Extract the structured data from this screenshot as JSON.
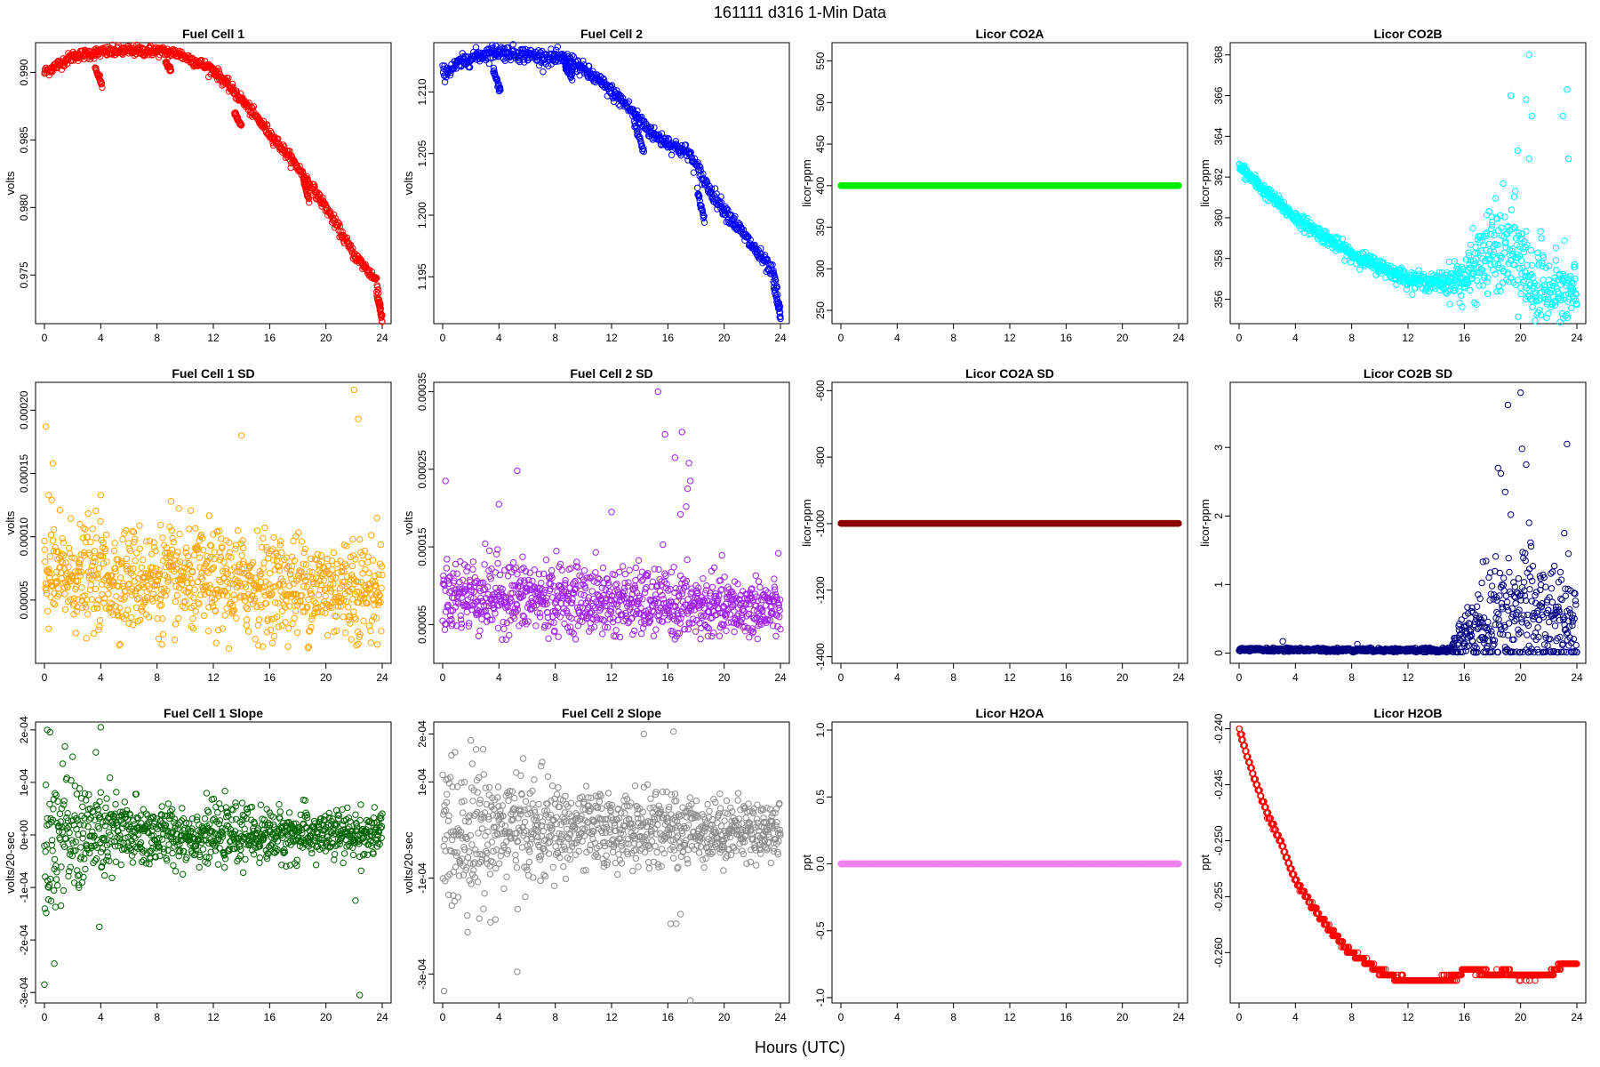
{
  "page": {
    "title": "161111    d316    1-Min Data",
    "xlabel": "Hours (UTC)"
  },
  "chart_data": [
    {
      "type": "scatter",
      "title": "Fuel Cell 1",
      "ylabel": "volts",
      "color": "#ff0000",
      "xlim": [
        0,
        24
      ],
      "ylim": [
        0.9714,
        0.9922
      ],
      "xticks": [
        0,
        4,
        8,
        12,
        16,
        20,
        24
      ],
      "yticks": [
        0.975,
        0.98,
        0.985,
        0.99
      ],
      "ytick_labels": [
        "0.975",
        "0.980",
        "0.985",
        "0.990"
      ],
      "gen": {
        "kind": "curve",
        "pts": [
          [
            0,
            0.99
          ],
          [
            2,
            0.9912
          ],
          [
            4,
            0.9915
          ],
          [
            6,
            0.9916
          ],
          [
            8,
            0.9916
          ],
          [
            9.5,
            0.9914
          ],
          [
            12,
            0.9902
          ],
          [
            14,
            0.988
          ],
          [
            16,
            0.9855
          ],
          [
            18,
            0.983
          ],
          [
            20,
            0.98
          ],
          [
            22,
            0.9765
          ],
          [
            23.6,
            0.9746
          ],
          [
            24,
            0.9718
          ]
        ],
        "noise": 0.0002,
        "drops": [
          [
            3.6,
            4.1,
            0.9904,
            0.989
          ],
          [
            8.6,
            9.0,
            0.9908,
            0.9901
          ],
          [
            13.5,
            14.0,
            0.987,
            0.986
          ],
          [
            18.4,
            18.8,
            0.982,
            0.9805
          ],
          [
            23.6,
            24.0,
            0.9736,
            0.9716
          ]
        ]
      }
    },
    {
      "type": "scatter",
      "title": "Fuel Cell 2",
      "ylabel": "volts",
      "color": "#0000ff",
      "xlim": [
        0,
        24
      ],
      "ylim": [
        1.1912,
        1.214
      ],
      "xticks": [
        0,
        4,
        8,
        12,
        16,
        20,
        24
      ],
      "yticks": [
        1.195,
        1.2,
        1.205,
        1.21
      ],
      "ytick_labels": [
        "1.195",
        "1.200",
        "1.205",
        "1.210"
      ],
      "gen": {
        "kind": "curve",
        "pts": [
          [
            0,
            1.2115
          ],
          [
            2,
            1.2128
          ],
          [
            3.8,
            1.2133
          ],
          [
            6,
            1.213
          ],
          [
            9,
            1.2126
          ],
          [
            11,
            1.211
          ],
          [
            13,
            1.209
          ],
          [
            15,
            1.2065
          ],
          [
            17.5,
            1.205
          ],
          [
            19,
            1.202
          ],
          [
            21,
            1.199
          ],
          [
            23,
            1.196
          ],
          [
            23.6,
            1.195
          ],
          [
            24,
            1.1918
          ]
        ],
        "noise": 0.0003,
        "drops": [
          [
            3.6,
            4.1,
            1.2118,
            1.21
          ],
          [
            8.7,
            9.2,
            1.2122,
            1.2112
          ],
          [
            13.6,
            14.3,
            1.2075,
            1.2052
          ],
          [
            18.1,
            18.6,
            1.202,
            1.1995
          ],
          [
            23.5,
            24.0,
            1.1945,
            1.1918
          ]
        ]
      }
    },
    {
      "type": "scatter",
      "title": "Licor CO2A",
      "ylabel": "licor-ppm",
      "color": "#00ee00",
      "xlim": [
        0,
        24
      ],
      "ylim": [
        234,
        572
      ],
      "xticks": [
        0,
        4,
        8,
        12,
        16,
        20,
        24
      ],
      "yticks": [
        250,
        300,
        350,
        400,
        450,
        500,
        550
      ],
      "ytick_labels": [
        "250",
        "300",
        "350",
        "400",
        "450",
        "500",
        "550"
      ],
      "gen": {
        "kind": "flat",
        "y": 400
      }
    },
    {
      "type": "scatter",
      "title": "Licor CO2B",
      "ylabel": "licor-ppm",
      "color": "#00ffff",
      "xlim": [
        0,
        24
      ],
      "ylim": [
        354.8,
        368.6
      ],
      "xticks": [
        0,
        4,
        8,
        12,
        16,
        20,
        24
      ],
      "yticks": [
        356,
        358,
        360,
        362,
        364,
        366,
        368
      ],
      "ytick_labels": [
        "356",
        "358",
        "360",
        "362",
        "364",
        "366",
        "368"
      ],
      "gen": {
        "kind": "noisy",
        "pts": [
          [
            0,
            362.5
          ],
          [
            2,
            361.2
          ],
          [
            4,
            360.0
          ],
          [
            8,
            358.2
          ],
          [
            12,
            357.0
          ],
          [
            13.6,
            356.8
          ],
          [
            16,
            357.0
          ],
          [
            18,
            358.5
          ],
          [
            20,
            358.0
          ],
          [
            21,
            356.5
          ],
          [
            24,
            356.2
          ]
        ],
        "noise": [
          [
            0,
            0.15
          ],
          [
            14,
            0.2
          ],
          [
            16,
            0.6
          ],
          [
            19,
            1.3
          ],
          [
            24,
            0.8
          ]
        ],
        "outliers": [
          [
            19.3,
            366.0
          ],
          [
            20.4,
            365.8
          ],
          [
            20.6,
            368.0
          ],
          [
            20.8,
            365.0
          ],
          [
            23.0,
            365.0
          ],
          [
            23.3,
            366.3
          ],
          [
            23.4,
            362.9
          ],
          [
            20.6,
            362.9
          ],
          [
            19.8,
            363.3
          ]
        ]
      }
    },
    {
      "type": "scatter",
      "title": "Fuel Cell 1 SD",
      "ylabel": "volts",
      "color": "#ffa500",
      "xlim": [
        0,
        24
      ],
      "ylim": [
        0.0,
        0.000222
      ],
      "xticks": [
        0,
        4,
        8,
        12,
        16,
        20,
        24
      ],
      "yticks": [
        5e-05,
        0.0001,
        0.00015,
        0.0002
      ],
      "ytick_labels": [
        "0.00005",
        "0.00010",
        "0.00015",
        "0.00020"
      ],
      "gen": {
        "kind": "noisy",
        "pts": [
          [
            0,
            7e-05
          ],
          [
            24,
            5.8e-05
          ]
        ],
        "noise": [
          [
            0,
            2e-05
          ],
          [
            24,
            2e-05
          ]
        ],
        "clip": 1e-05,
        "outliers": [
          [
            0.1,
            0.000187
          ],
          [
            0.6,
            0.000158
          ],
          [
            4,
            0.000133
          ],
          [
            0.3,
            0.000133
          ],
          [
            9,
            0.000128
          ],
          [
            14,
            0.00018
          ],
          [
            22,
            0.000216
          ],
          [
            22.3,
            0.000193
          ],
          [
            21.9,
            9.8e-05
          ]
        ]
      }
    },
    {
      "type": "scatter",
      "title": "Fuel Cell 2 SD",
      "ylabel": "volts",
      "color": "#a020f0",
      "xlim": [
        0,
        24
      ],
      "ylim": [
        0.0,
        0.000362
      ],
      "xticks": [
        0,
        4,
        8,
        12,
        16,
        20,
        24
      ],
      "yticks": [
        5e-05,
        0.00015,
        0.00025,
        0.00035
      ],
      "ytick_labels": [
        "0.00005",
        "0.00015",
        "0.00025",
        "0.00035"
      ],
      "gen": {
        "kind": "noisy",
        "pts": [
          [
            0,
            9e-05
          ],
          [
            12,
            8e-05
          ],
          [
            20,
            7e-05
          ],
          [
            24,
            7e-05
          ]
        ],
        "noise": [
          [
            0,
            2.5e-05
          ],
          [
            24,
            2e-05
          ]
        ],
        "clip": 3e-05,
        "outliers": [
          [
            0.2,
            0.000235
          ],
          [
            4,
            0.000205
          ],
          [
            5.3,
            0.000248
          ],
          [
            12,
            0.000195
          ],
          [
            15.3,
            0.00035
          ],
          [
            15.8,
            0.000295
          ],
          [
            16.5,
            0.000265
          ],
          [
            17,
            0.000298
          ],
          [
            17.5,
            0.000258
          ],
          [
            17.6,
            0.000235
          ],
          [
            17.4,
            0.000225
          ],
          [
            17.3,
            0.000202
          ],
          [
            16.9,
            0.000192
          ]
        ]
      }
    },
    {
      "type": "scatter",
      "title": "Licor CO2A SD",
      "ylabel": "licor-ppm",
      "color": "#8b0000",
      "xlim": [
        0,
        24
      ],
      "ylim": [
        -1420,
        -575
      ],
      "xticks": [
        0,
        4,
        8,
        12,
        16,
        20,
        24
      ],
      "yticks": [
        -1400,
        -1200,
        -1000,
        -800,
        -600
      ],
      "ytick_labels": [
        "-1400",
        "-1200",
        "-1000",
        "-800",
        "-600"
      ],
      "gen": {
        "kind": "flat",
        "y": -999
      }
    },
    {
      "type": "scatter",
      "title": "Licor CO2B SD",
      "ylabel": "licor-ppm",
      "color": "#000080",
      "xlim": [
        0,
        24
      ],
      "ylim": [
        -0.15,
        3.95
      ],
      "xticks": [
        0,
        4,
        8,
        12,
        16,
        20,
        24
      ],
      "yticks": [
        0,
        1,
        2,
        3
      ],
      "ytick_labels": [
        "0",
        "1",
        "2",
        "3"
      ],
      "gen": {
        "kind": "noisy",
        "pts": [
          [
            0,
            0.05
          ],
          [
            15,
            0.04
          ],
          [
            16,
            0.25
          ],
          [
            19,
            0.6
          ],
          [
            24,
            0.4
          ]
        ],
        "noise": [
          [
            0,
            0.012
          ],
          [
            15,
            0.015
          ],
          [
            16,
            0.25
          ],
          [
            19,
            0.5
          ],
          [
            24,
            0.4
          ]
        ],
        "clip": 0.01,
        "outliers": [
          [
            19.1,
            3.62
          ],
          [
            20.0,
            3.8
          ],
          [
            20.1,
            2.98
          ],
          [
            20.4,
            2.75
          ],
          [
            23.3,
            3.05
          ],
          [
            18.4,
            2.7
          ],
          [
            18.6,
            2.62
          ],
          [
            19.3,
            2.02
          ],
          [
            18.9,
            2.35
          ],
          [
            20.6,
            1.9
          ],
          [
            23.1,
            1.75
          ],
          [
            23.4,
            1.45
          ],
          [
            3.1,
            0.17
          ],
          [
            8.4,
            0.13
          ]
        ]
      }
    },
    {
      "type": "scatter",
      "title": "Fuel Cell 1 Slope",
      "ylabel": "volts/20-sec",
      "color": "#006400",
      "xlim": [
        0,
        24
      ],
      "ylim": [
        -0.00032,
        0.000215
      ],
      "xticks": [
        0,
        4,
        8,
        12,
        16,
        20,
        24
      ],
      "yticks": [
        -0.0003,
        -0.0002,
        -0.0001,
        0,
        0.0001,
        0.0002
      ],
      "ytick_labels": [
        "-3e-04",
        "-2e-04",
        "-1e-04",
        "0e+00",
        "1e-04",
        "2e-04"
      ],
      "gen": {
        "kind": "noisy",
        "pts": [
          [
            0,
            0
          ],
          [
            24,
            0
          ]
        ],
        "noise": [
          [
            0,
            7.5e-05
          ],
          [
            4,
            4.5e-05
          ],
          [
            8,
            2.8e-05
          ],
          [
            24,
            2.2e-05
          ]
        ],
        "outliers": [
          [
            0.2,
            0.0002
          ],
          [
            4,
            0.000205
          ],
          [
            0,
            -0.000285
          ],
          [
            0.7,
            -0.000245
          ],
          [
            22.4,
            -0.000305
          ],
          [
            22.1,
            -0.000125
          ],
          [
            3.9,
            -0.000175
          ]
        ]
      }
    },
    {
      "type": "scatter",
      "title": "Fuel Cell 2 Slope",
      "ylabel": "volts/20-sec",
      "color": "#8c8c8c",
      "xlim": [
        0,
        24
      ],
      "ylim": [
        -0.00036,
        0.000225
      ],
      "xticks": [
        0,
        4,
        8,
        12,
        16,
        20,
        24
      ],
      "yticks": [
        -0.0003,
        -0.0001,
        0.0001,
        0.0002
      ],
      "ytick_labels": [
        "-3e-04",
        "-1e-04",
        "1e-04",
        "2e-04"
      ],
      "gen": {
        "kind": "noisy",
        "pts": [
          [
            0,
            0
          ],
          [
            24,
            0
          ]
        ],
        "noise": [
          [
            0,
            9e-05
          ],
          [
            5,
            6e-05
          ],
          [
            10,
            4e-05
          ],
          [
            24,
            3e-05
          ]
        ],
        "outliers": [
          [
            0.1,
            -0.000335
          ],
          [
            5.3,
            -0.000295
          ],
          [
            14.3,
            0.0002
          ],
          [
            16.4,
            0.000205
          ],
          [
            17.6,
            -0.000355
          ],
          [
            16.6,
            -0.000195
          ],
          [
            16.9,
            -0.000175
          ],
          [
            16.2,
            -0.000195
          ]
        ]
      }
    },
    {
      "type": "scatter",
      "title": "Licor H2OA",
      "ylabel": "ppt",
      "color": "#ee82ee",
      "xlim": [
        0,
        24
      ],
      "ylim": [
        -1.04,
        1.06
      ],
      "xticks": [
        0,
        4,
        8,
        12,
        16,
        20,
        24
      ],
      "yticks": [
        -1,
        -0.5,
        0,
        0.5,
        1
      ],
      "ytick_labels": [
        "-1.0",
        "-0.5",
        "0.0",
        "0.5",
        "1.0"
      ],
      "gen": {
        "kind": "flat",
        "y": 0
      }
    },
    {
      "type": "scatter",
      "title": "Licor H2OB",
      "ylabel": "ppt",
      "color": "#ff0000",
      "xlim": [
        0,
        24
      ],
      "ylim": [
        -0.2645,
        -0.2394
      ],
      "xticks": [
        0,
        4,
        8,
        12,
        16,
        20,
        24
      ],
      "yticks": [
        -0.26,
        -0.255,
        -0.25,
        -0.245,
        -0.24
      ],
      "ytick_labels": [
        "-0.260",
        "-0.255",
        "-0.250",
        "-0.245",
        "-0.240"
      ],
      "gen": {
        "kind": "steps",
        "step": 0.0005,
        "pts": [
          [
            0,
            -0.24
          ],
          [
            1,
            -0.2442
          ],
          [
            2,
            -0.2476
          ],
          [
            3,
            -0.2503
          ],
          [
            4,
            -0.2535
          ],
          [
            5,
            -0.2555
          ],
          [
            6,
            -0.2572
          ],
          [
            7,
            -0.2588
          ],
          [
            8,
            -0.26
          ],
          [
            9,
            -0.2608
          ],
          [
            10,
            -0.2617
          ],
          [
            11,
            -0.2622
          ],
          [
            12.5,
            -0.2625
          ],
          [
            13.5,
            -0.2625
          ],
          [
            15.5,
            -0.2622
          ],
          [
            16,
            -0.2615
          ],
          [
            17,
            -0.2616
          ],
          [
            18,
            -0.262
          ],
          [
            19,
            -0.2617
          ],
          [
            20,
            -0.2622
          ],
          [
            22,
            -0.262
          ],
          [
            23,
            -0.261
          ],
          [
            24,
            -0.261
          ]
        ],
        "dither": 0.00035
      }
    }
  ]
}
